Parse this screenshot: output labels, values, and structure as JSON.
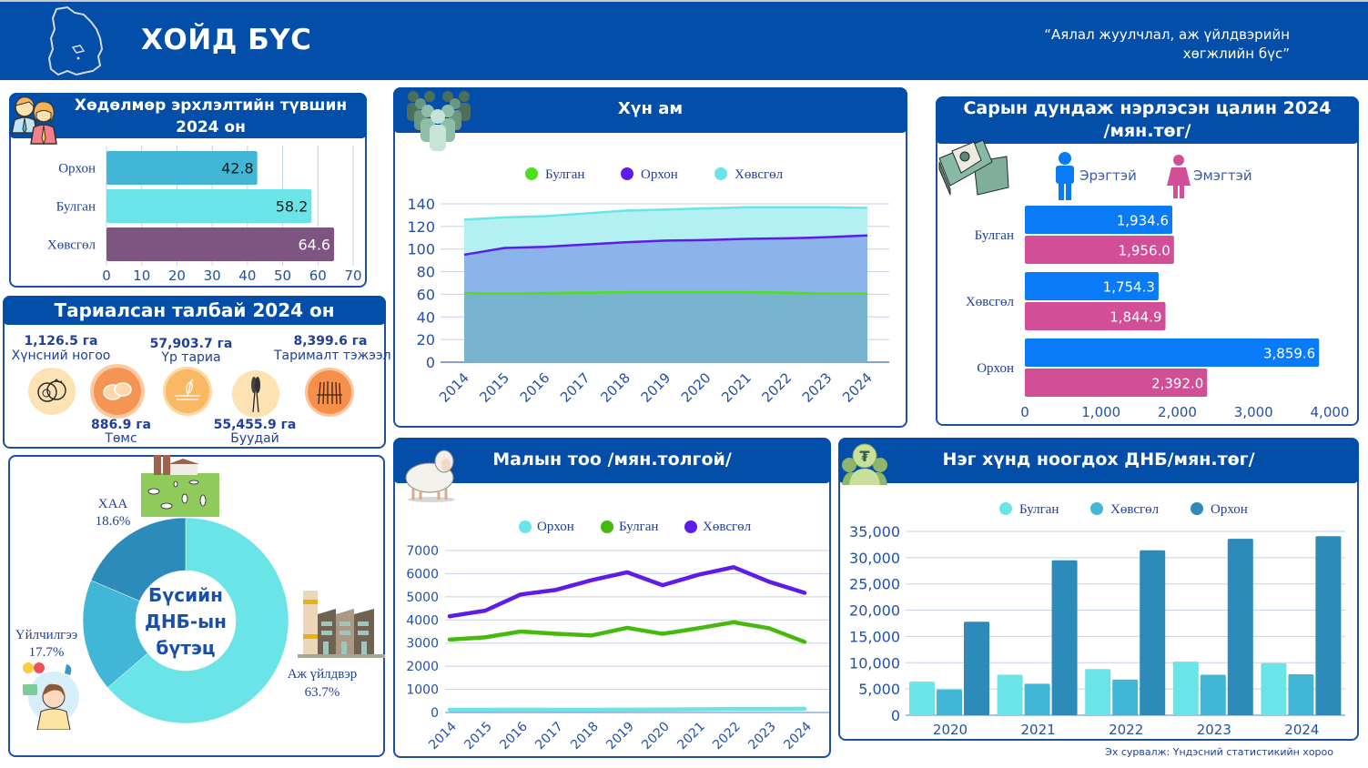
{
  "header": {
    "title": "ХОЙД БҮС",
    "quote_line1": "“Аялал жуулчлал, аж үйлдвэрийн",
    "quote_line2": "хөгжлийн бүс”",
    "map_icon": "region-map-outline-icon"
  },
  "employment": {
    "title_line1": "Хөдөлмөр эрхлэлтийн түвшин",
    "title_line2": "2024 он",
    "icon": "people-icon"
  },
  "crops": {
    "title": "Тариалсан талбай 2024 он",
    "items": [
      {
        "value": "1,126.5 га",
        "name": "Хүнсний ногоо",
        "icon": "tomato-icon"
      },
      {
        "value": "886.9 га",
        "name": "Төмс",
        "icon": "potato-icon"
      },
      {
        "value": "57,903.7 га",
        "name": "Үр тариа",
        "icon": "grain-field-icon"
      },
      {
        "value": "55,455.9 га",
        "name": "Буудай",
        "icon": "wheat-icon"
      },
      {
        "value": "8,399.6 га",
        "name": "Тарималт тэжээл",
        "icon": "fodder-crop-icon"
      }
    ]
  },
  "gdp_structure": {
    "center_line1": "Бүсийн",
    "center_line2": "ДНБ-ын",
    "center_line3": "бүтэц",
    "icons": [
      "farm-icon",
      "factory-icon",
      "service-worker-icon"
    ]
  },
  "population": {
    "title": "Хүн ам",
    "icon": "crowd-icon"
  },
  "wages": {
    "title_line1": "Сарын дундаж нэрлэсэн цалин 2024",
    "title_line2": "/мян.төг/",
    "icon": "money-stack-icon",
    "male_label": "Эрэгтэй",
    "female_label": "Эмэгтэй"
  },
  "livestock": {
    "title": "Малын тоо /мян.толгой/",
    "icon": "sheep-icon"
  },
  "gdp_per_capita": {
    "title": "Нэг хүнд ноогдох ДНБ/мян.төг/",
    "icon": "tugrik-person-icon"
  },
  "source": "Эх сурвалж: Үндэсний статистикийн хороо",
  "colors": {
    "brand": "#034EA8",
    "teal_light": "#6BE4E8",
    "teal_mid": "#42B6D6",
    "teal_dark": "#2D8BBA",
    "purple": "#7E5480",
    "male": "#0A7BF7",
    "female": "#D24E97",
    "violet": "#5F1CE8",
    "green": "#4DE01A",
    "green_dark": "#46BA0C"
  },
  "chart_data": [
    {
      "id": "employment",
      "type": "bar",
      "orientation": "horizontal",
      "title": "Хөдөлмөр эрхлэлтийн түвшин 2024 он",
      "categories": [
        "Орхон",
        "Булган",
        "Хөвсгөл"
      ],
      "values": [
        42.8,
        58.2,
        64.6
      ],
      "labels": [
        "42.8",
        "58.2",
        "64.6"
      ],
      "xlim": [
        0,
        70
      ],
      "xticks": [
        0,
        10,
        20,
        30,
        40,
        50,
        60,
        70
      ],
      "grid": true
    },
    {
      "id": "population",
      "type": "area",
      "title": "Хүн ам",
      "x": [
        "2014",
        "2015",
        "2016",
        "2017",
        "2018",
        "2019",
        "2020",
        "2021",
        "2022",
        "2023",
        "2024"
      ],
      "series": [
        {
          "name": "Булган",
          "values": [
            61,
            60.5,
            61,
            61.5,
            62,
            62,
            62,
            62,
            61.5,
            60.5,
            60.5
          ]
        },
        {
          "name": "Орхон",
          "values": [
            95,
            101,
            102,
            104,
            106,
            107.5,
            108,
            109,
            109.5,
            110.5,
            112
          ]
        },
        {
          "name": "Хөвсгөл",
          "values": [
            126,
            128,
            129,
            131.5,
            134,
            135,
            136,
            137,
            137,
            137,
            136.5
          ]
        }
      ],
      "ylim": [
        0,
        140
      ],
      "yticks": [
        0,
        20,
        40,
        60,
        80,
        100,
        120,
        140
      ],
      "legend": "top-center",
      "grid": true
    },
    {
      "id": "wages",
      "type": "bar",
      "orientation": "horizontal",
      "title": "Сарын дундаж нэрлэсэн цалин 2024 /мян.төг/",
      "categories": [
        "Булган",
        "Хөвсгөл",
        "Орхон"
      ],
      "series": [
        {
          "name": "Эрэгтэй",
          "values": [
            1934.6,
            1754.3,
            3859.6
          ],
          "labels": [
            "1,934.6",
            "1,754.3",
            "3,859.6"
          ]
        },
        {
          "name": "Эмэгтэй",
          "values": [
            1956.0,
            1844.9,
            2392.0
          ],
          "labels": [
            "1,956.0",
            "1,844.9",
            "2,392.0"
          ]
        }
      ],
      "xlim": [
        0,
        4000
      ],
      "xticks": [
        "0",
        "1,000",
        "2,000",
        "3,000",
        "4,000"
      ],
      "legend": "top"
    },
    {
      "id": "gdp_structure",
      "type": "pie",
      "title": "Бүсийн ДНБ-ын бүтэц",
      "slices": [
        {
          "label": "Аж үйлдвэр",
          "value": 63.7,
          "text": "63.7%"
        },
        {
          "label": "Үйлчилгээ",
          "value": 17.7,
          "text": "17.7%"
        },
        {
          "label": "ХАА",
          "value": 18.6,
          "text": "18.6%"
        }
      ],
      "donut": true
    },
    {
      "id": "livestock",
      "type": "line",
      "title": "Малын тоо /мян.толгой/",
      "x": [
        "2014",
        "2015",
        "2016",
        "2017",
        "2018",
        "2019",
        "2020",
        "2021",
        "2022",
        "2023",
        "2024"
      ],
      "series": [
        {
          "name": "Орхон",
          "values": [
            120,
            120,
            125,
            120,
            120,
            125,
            130,
            140,
            150,
            150,
            160
          ]
        },
        {
          "name": "Булган",
          "values": [
            3150,
            3250,
            3500,
            3400,
            3330,
            3660,
            3400,
            3640,
            3900,
            3640,
            3050
          ]
        },
        {
          "name": "Хөвсгөл",
          "values": [
            4160,
            4400,
            5100,
            5300,
            5720,
            6060,
            5500,
            5950,
            6280,
            5650,
            5170
          ]
        }
      ],
      "ylim": [
        0,
        7000
      ],
      "yticks": [
        0,
        1000,
        2000,
        3000,
        4000,
        5000,
        6000,
        7000
      ],
      "legend": "top-center",
      "grid": true
    },
    {
      "id": "gdp_per_capita",
      "type": "bar",
      "title": "Нэг хүнд ноогдох ДНБ/мян.төг/",
      "categories": [
        "2020",
        "2021",
        "2022",
        "2023",
        "2024"
      ],
      "series": [
        {
          "name": "Булган",
          "values": [
            6400,
            7700,
            8800,
            10200,
            9900
          ]
        },
        {
          "name": "Хөвсгөл",
          "values": [
            4900,
            6000,
            6800,
            7700,
            7800
          ]
        },
        {
          "name": "Орхон",
          "values": [
            17800,
            29500,
            31400,
            33600,
            34100
          ]
        }
      ],
      "ylim": [
        0,
        35000
      ],
      "yticks": [
        "0",
        "5,000",
        "10,000",
        "15,000",
        "20,000",
        "25,000",
        "30,000",
        "35,000"
      ],
      "legend": "top-center",
      "grid": true
    }
  ]
}
